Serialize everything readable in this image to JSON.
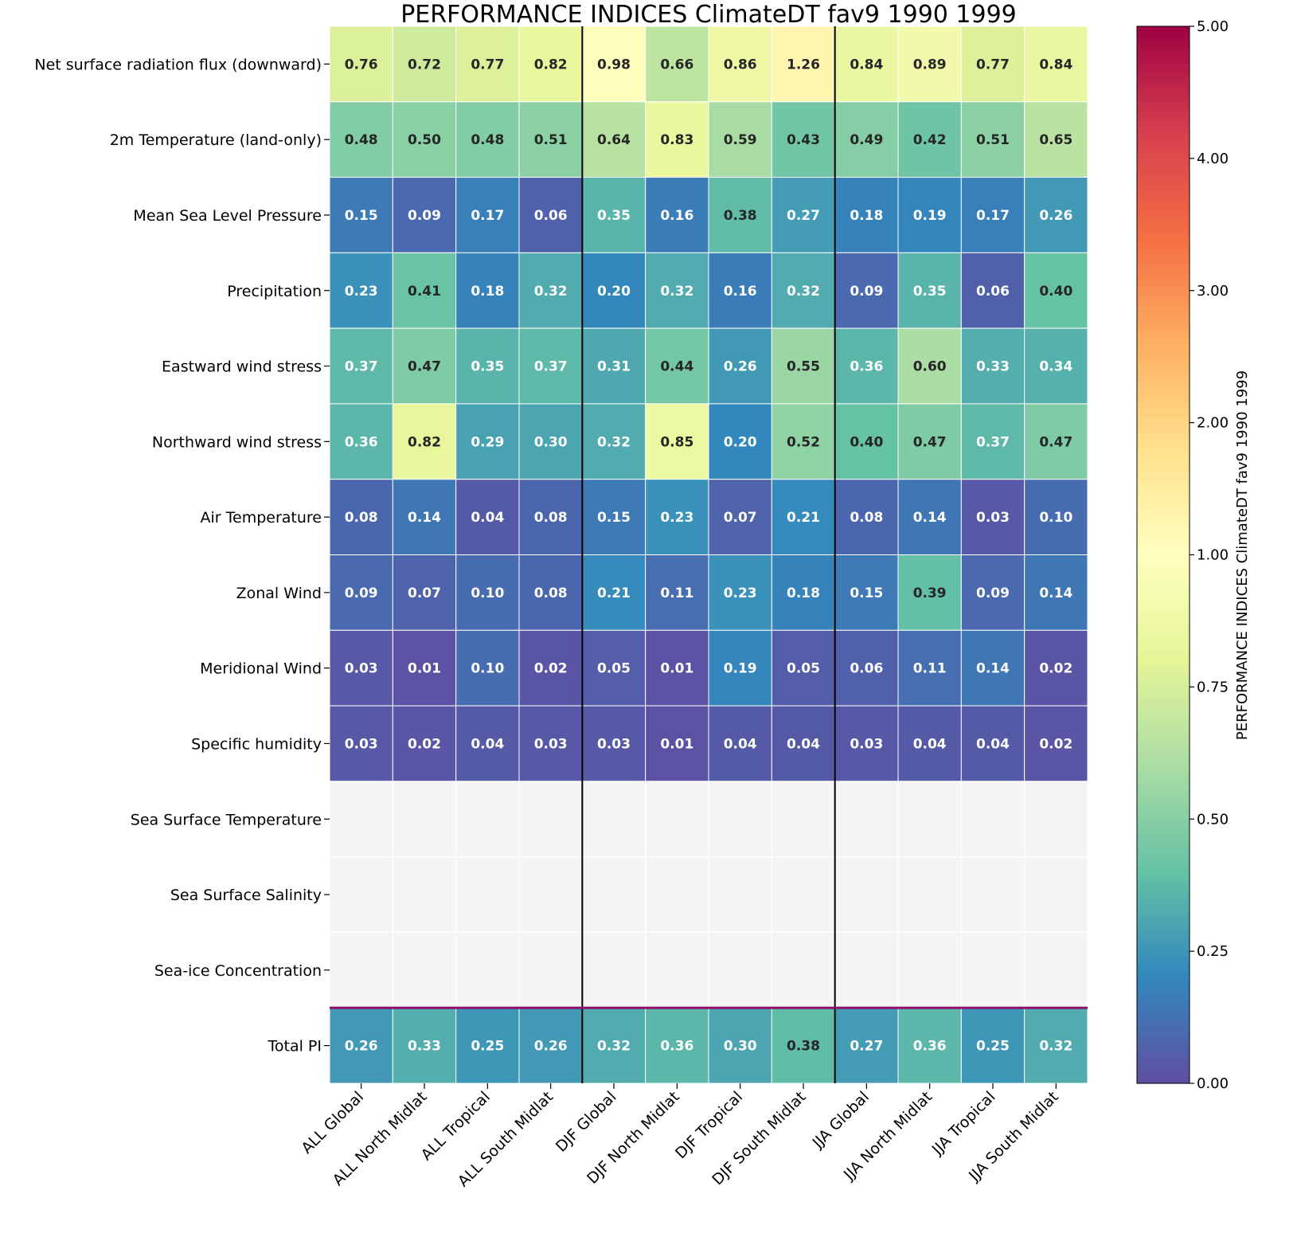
{
  "chart_data": {
    "type": "heatmap",
    "title": "PERFORMANCE INDICES ClimateDT fav9 1990 1999",
    "colorbar_label": "PERFORMANCE INDICES ClimateDT fav9 1990 1999",
    "colormap": "Spectral_r",
    "colorbar_range": [
      0,
      5
    ],
    "colorbar_center": 1.0,
    "colorbar_ticks": [
      "0.00",
      "0.25",
      "0.50",
      "0.75",
      "1.00",
      "2.00",
      "3.00",
      "4.00",
      "5.00"
    ],
    "missing_color": "#f4f4f4",
    "separator_color": "#000000",
    "total_separator_color": "#8e0f6e",
    "columns": [
      "ALL Global",
      "ALL North Midlat",
      "ALL Tropical",
      "ALL South Midlat",
      "DJF Global",
      "DJF North Midlat",
      "DJF Tropical",
      "DJF South Midlat",
      "JJA Global",
      "JJA North Midlat",
      "JJA Tropical",
      "JJA South Midlat"
    ],
    "rows": [
      "Net surface radiation flux (downward)",
      "2m Temperature (land-only)",
      "Mean Sea Level Pressure",
      "Precipitation",
      "Eastward wind stress",
      "Northward wind stress",
      "Air Temperature",
      "Zonal Wind",
      "Meridional Wind",
      "Specific humidity",
      "Sea Surface Temperature",
      "Sea Surface Salinity",
      "Sea-ice Concentration",
      "Total PI"
    ],
    "values": [
      [
        "0.76",
        "0.72",
        "0.77",
        "0.82",
        "0.98",
        "0.66",
        "0.86",
        "1.26",
        "0.84",
        "0.89",
        "0.77",
        "0.84"
      ],
      [
        "0.48",
        "0.50",
        "0.48",
        "0.51",
        "0.64",
        "0.83",
        "0.59",
        "0.43",
        "0.49",
        "0.42",
        "0.51",
        "0.65"
      ],
      [
        "0.15",
        "0.09",
        "0.17",
        "0.06",
        "0.35",
        "0.16",
        "0.38",
        "0.27",
        "0.18",
        "0.19",
        "0.17",
        "0.26"
      ],
      [
        "0.23",
        "0.41",
        "0.18",
        "0.32",
        "0.20",
        "0.32",
        "0.16",
        "0.32",
        "0.09",
        "0.35",
        "0.06",
        "0.40"
      ],
      [
        "0.37",
        "0.47",
        "0.35",
        "0.37",
        "0.31",
        "0.44",
        "0.26",
        "0.55",
        "0.36",
        "0.60",
        "0.33",
        "0.34"
      ],
      [
        "0.36",
        "0.82",
        "0.29",
        "0.30",
        "0.32",
        "0.85",
        "0.20",
        "0.52",
        "0.40",
        "0.47",
        "0.37",
        "0.47"
      ],
      [
        "0.08",
        "0.14",
        "0.04",
        "0.08",
        "0.15",
        "0.23",
        "0.07",
        "0.21",
        "0.08",
        "0.14",
        "0.03",
        "0.10"
      ],
      [
        "0.09",
        "0.07",
        "0.10",
        "0.08",
        "0.21",
        "0.11",
        "0.23",
        "0.18",
        "0.15",
        "0.39",
        "0.09",
        "0.14"
      ],
      [
        "0.03",
        "0.01",
        "0.10",
        "0.02",
        "0.05",
        "0.01",
        "0.19",
        "0.05",
        "0.06",
        "0.11",
        "0.14",
        "0.02"
      ],
      [
        "0.03",
        "0.02",
        "0.04",
        "0.03",
        "0.03",
        "0.01",
        "0.04",
        "0.04",
        "0.03",
        "0.04",
        "0.04",
        "0.02"
      ],
      [
        null,
        null,
        null,
        null,
        null,
        null,
        null,
        null,
        null,
        null,
        null,
        null
      ],
      [
        null,
        null,
        null,
        null,
        null,
        null,
        null,
        null,
        null,
        null,
        null,
        null
      ],
      [
        null,
        null,
        null,
        null,
        null,
        null,
        null,
        null,
        null,
        null,
        null,
        null
      ],
      [
        "0.26",
        "0.33",
        "0.25",
        "0.26",
        "0.32",
        "0.36",
        "0.30",
        "0.38",
        "0.27",
        "0.36",
        "0.25",
        "0.32"
      ]
    ]
  }
}
